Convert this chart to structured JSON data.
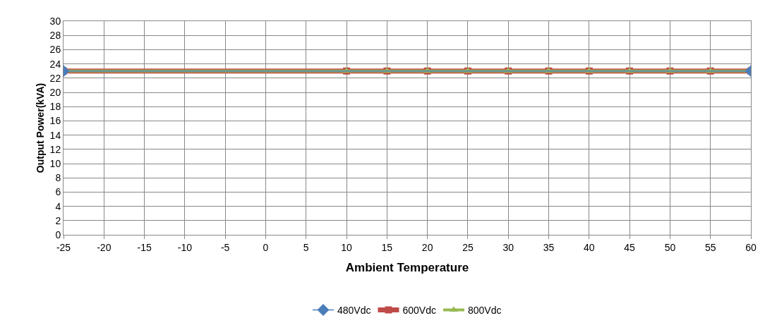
{
  "chart_data": {
    "type": "line",
    "xlabel": "Ambient Temperature",
    "ylabel": "Output Power(kVA)",
    "xlim": [
      -25,
      60
    ],
    "xticks": [
      -25,
      -20,
      -15,
      -10,
      -5,
      0,
      5,
      10,
      15,
      20,
      25,
      30,
      35,
      40,
      45,
      50,
      55,
      60
    ],
    "ylim": [
      0,
      30
    ],
    "yticks": [
      0,
      2,
      4,
      6,
      8,
      10,
      12,
      14,
      16,
      18,
      20,
      22,
      24,
      26,
      28,
      30
    ],
    "grid": true,
    "legend": "bottom",
    "series": [
      {
        "name": "480Vdc",
        "color": "#4a7ebb",
        "marker": "diamond",
        "x": [
          -25,
          60
        ],
        "values": [
          23,
          23
        ]
      },
      {
        "name": "600Vdc",
        "color": "#be4b48",
        "marker": "square",
        "x": [
          -25,
          10,
          15,
          20,
          25,
          30,
          35,
          40,
          45,
          50,
          55,
          60
        ],
        "values": [
          23,
          23,
          23,
          23,
          23,
          23,
          23,
          23,
          23,
          23,
          23,
          23
        ]
      },
      {
        "name": "800Vdc",
        "color": "#98b954",
        "marker": "triangle",
        "x": [
          -25,
          10,
          15,
          20,
          25,
          30,
          35,
          40,
          45,
          50,
          55,
          60
        ],
        "values": [
          23,
          23,
          23,
          23,
          23,
          23,
          23,
          23,
          23,
          23,
          23,
          23
        ]
      }
    ]
  }
}
